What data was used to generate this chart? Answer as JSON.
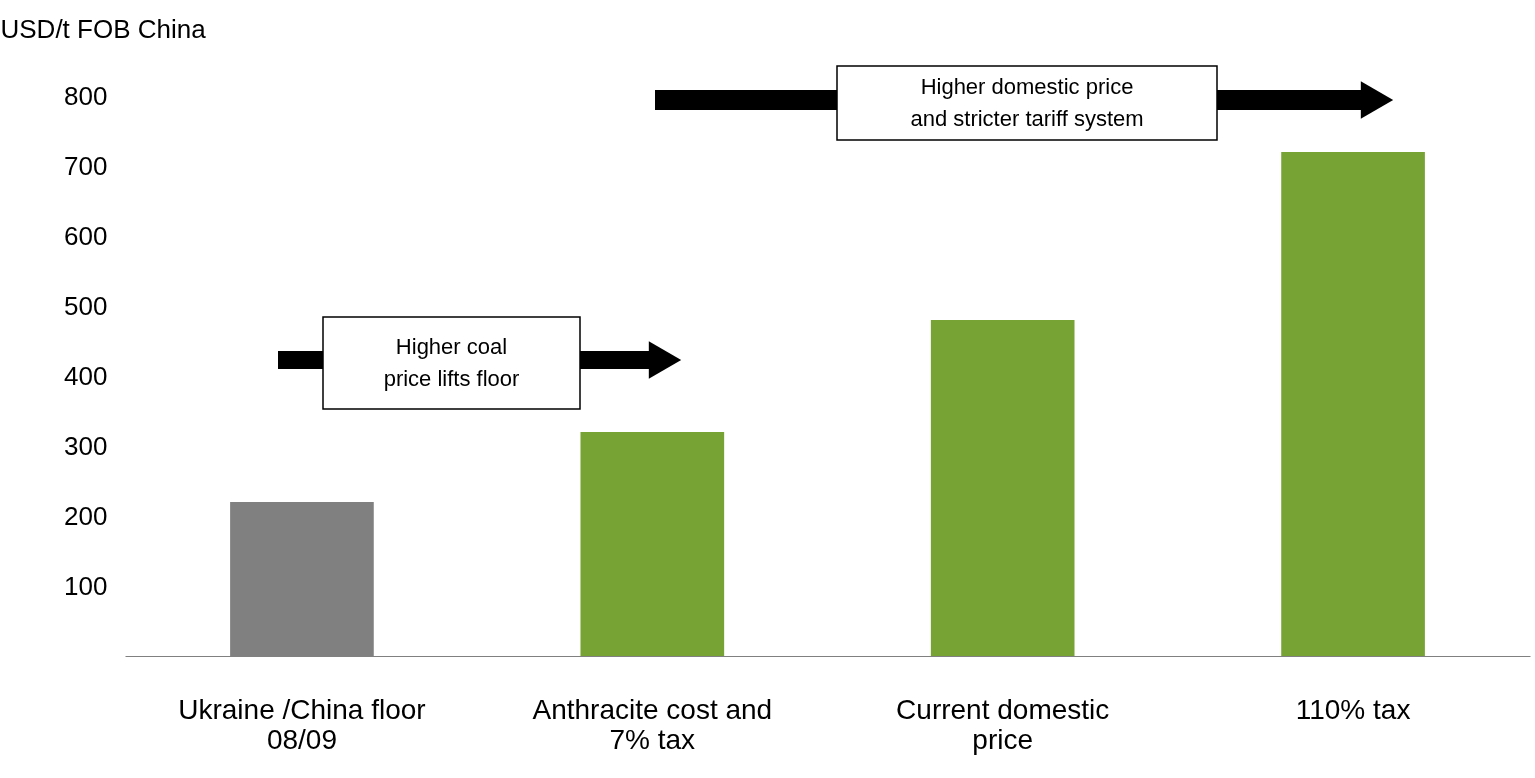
{
  "chart_data": {
    "type": "bar",
    "ylabel": "USD/t FOB China",
    "categories": [
      "Ukraine /China floor 08/09",
      "Anthracite cost and 7% tax",
      "Current domestic price",
      "110% tax"
    ],
    "values": [
      220,
      320,
      480,
      720
    ],
    "colors": [
      "#808080",
      "#77a234",
      "#77a234",
      "#77a234"
    ],
    "ylim": [
      0,
      800
    ],
    "yticks": [
      100,
      200,
      300,
      400,
      500,
      600,
      700,
      800
    ],
    "grid": false,
    "annotations": [
      "Higher coal price lifts floor",
      "Higher domestic price and stricter tariff system"
    ]
  }
}
